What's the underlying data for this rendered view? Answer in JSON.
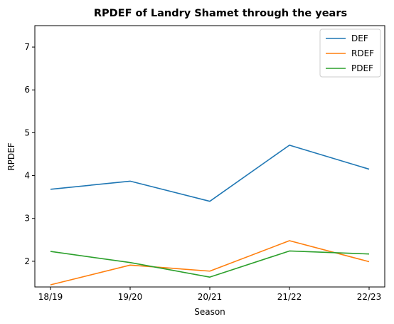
{
  "chart_data": {
    "type": "line",
    "title": "RPDEF of Landry Shamet through the years",
    "xlabel": "Season",
    "ylabel": "RPDEF",
    "categories": [
      "18/19",
      "19/20",
      "20/21",
      "21/22",
      "22/23"
    ],
    "ylim": [
      1.4,
      7.5
    ],
    "yticks": [
      2,
      3,
      4,
      5,
      6,
      7
    ],
    "grid": false,
    "legend_position": "top-right",
    "series": [
      {
        "name": "DEF",
        "color": "#1f77b4",
        "values": [
          3.68,
          3.87,
          3.4,
          4.71,
          4.15
        ]
      },
      {
        "name": "RDEF",
        "color": "#ff7f0e",
        "values": [
          1.45,
          1.91,
          1.77,
          2.48,
          1.99
        ]
      },
      {
        "name": "PDEF",
        "color": "#2ca02c",
        "values": [
          2.23,
          1.97,
          1.63,
          2.24,
          2.17
        ]
      }
    ]
  }
}
